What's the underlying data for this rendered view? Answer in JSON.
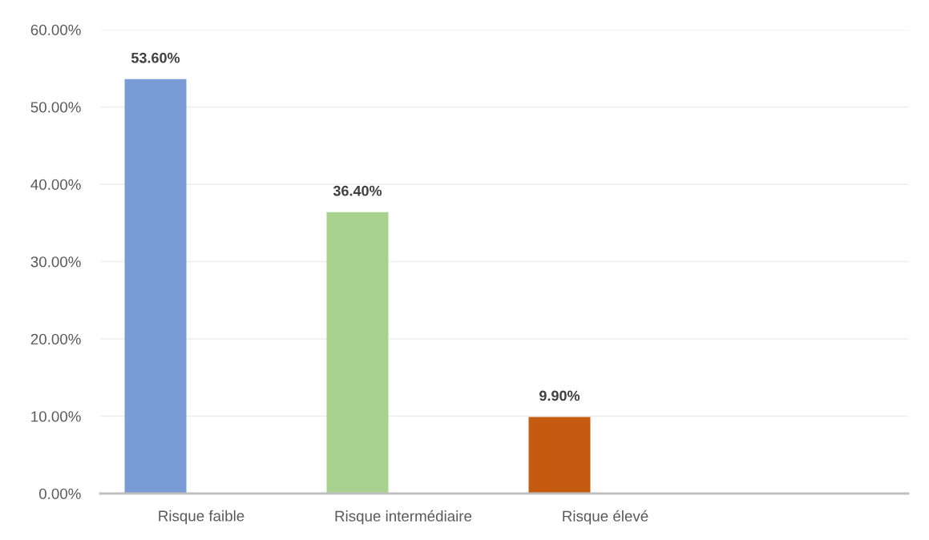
{
  "chart_data": {
    "type": "bar",
    "categories": [
      "Risque faible",
      "Risque intermédiaire",
      "Risque élevé",
      null
    ],
    "values": [
      53.6,
      36.4,
      9.9,
      null
    ],
    "colors": [
      "#7a9cd6",
      "#a9d18e",
      "#c55a11",
      null
    ],
    "value_labels": [
      "53.60%",
      "36.40%",
      "9.90%",
      null
    ],
    "ylim": [
      0,
      60
    ],
    "yticks": [
      {
        "value": 0,
        "label": "0.00%"
      },
      {
        "value": 10,
        "label": "10.00%"
      },
      {
        "value": 20,
        "label": "20.00%"
      },
      {
        "value": 30,
        "label": "30.00%"
      },
      {
        "value": 40,
        "label": "40.00%"
      },
      {
        "value": 50,
        "label": "50.00%"
      },
      {
        "value": 60,
        "label": "60.00%"
      }
    ],
    "grid": "y"
  }
}
